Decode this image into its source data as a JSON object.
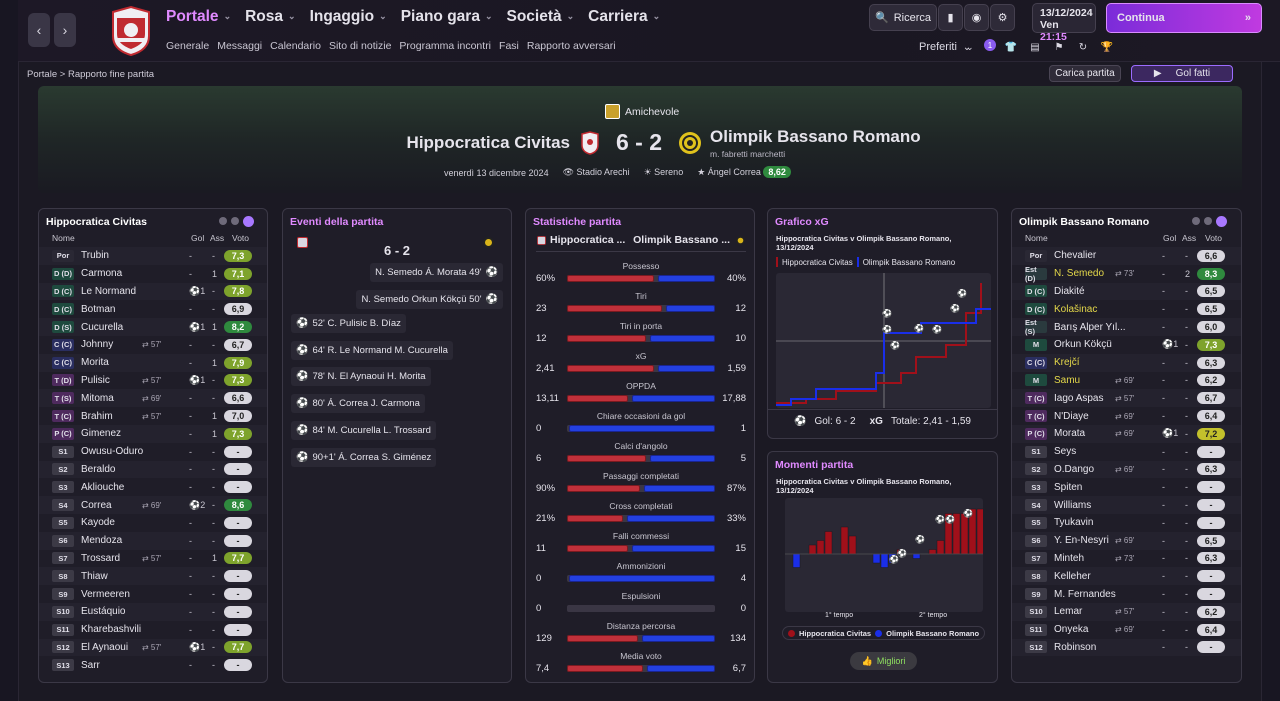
{
  "nav": {
    "back": "‹",
    "forward": "›",
    "menus": [
      {
        "label": "Portale",
        "active": true
      },
      {
        "label": "Rosa"
      },
      {
        "label": "Ingaggio"
      },
      {
        "label": "Piano gara"
      },
      {
        "label": "Società"
      },
      {
        "label": "Carriera"
      }
    ],
    "submenu": [
      "Generale",
      "Messaggi",
      "Calendario",
      "Sito di notizie",
      "Programma incontri",
      "Fasi",
      "Rapporto avversari"
    ],
    "search": "Ricerca",
    "date": "13/12/2024",
    "day": "Ven",
    "time": "21:15",
    "continue": "Continua",
    "favorites": "Preferiti",
    "notif_count": "1"
  },
  "breadcrumb": {
    "root": "Portale",
    "sep": ">",
    "current": "Rapporto fine partita"
  },
  "actions": {
    "load": "Carica partita",
    "goals": "Gol fatti"
  },
  "match": {
    "competition": "Amichevole",
    "home": "Hippocratica Civitas",
    "away": "Olimpik Bassano Romano",
    "score": "6 - 2",
    "coach": "m. fabretti marchetti",
    "date": "venerdì 13 dicembre 2024",
    "stadium": "Stadio Arechi",
    "weather": "Sereno",
    "pom": "Ángel Correa",
    "pom_rating": "8,62"
  },
  "home_panel": {
    "title": "Hippocratica Civitas",
    "col_name": "Nome",
    "col_gol": "Gol",
    "col_ass": "Ass",
    "col_vote": "Voto",
    "players": [
      {
        "pos": "Por",
        "cls": "gk",
        "name": "Trubin",
        "sub": "",
        "gol": "-",
        "ass": "-",
        "vote": "7,3",
        "vc": "g"
      },
      {
        "pos": "D (D)",
        "cls": "def",
        "name": "Carmona",
        "sub": "",
        "gol": "-",
        "ass": "1",
        "vote": "7,1",
        "vc": "g"
      },
      {
        "pos": "D (C)",
        "cls": "def",
        "name": "Le Normand",
        "sub": "",
        "gol": "⚽1",
        "ass": "-",
        "vote": "7,8",
        "vc": "g"
      },
      {
        "pos": "D (C)",
        "cls": "def",
        "name": "Botman",
        "sub": "",
        "gol": "-",
        "ass": "-",
        "vote": "6,9",
        "vc": "w"
      },
      {
        "pos": "D (S)",
        "cls": "def",
        "name": "Cucurella",
        "sub": "",
        "gol": "⚽1",
        "ass": "1",
        "vote": "8,2",
        "vc": "dg"
      },
      {
        "pos": "C (C)",
        "cls": "mid",
        "name": "Johnny",
        "sub": "⇄ 57'",
        "gol": "-",
        "ass": "-",
        "vote": "6,7",
        "vc": "w"
      },
      {
        "pos": "C (C)",
        "cls": "mid",
        "name": "Morita",
        "sub": "",
        "gol": "-",
        "ass": "1",
        "vote": "7,9",
        "vc": "g"
      },
      {
        "pos": "T (D)",
        "cls": "att",
        "name": "Pulisic",
        "sub": "⇄ 57'",
        "gol": "⚽1",
        "ass": "-",
        "vote": "7,3",
        "vc": "g"
      },
      {
        "pos": "T (S)",
        "cls": "att",
        "name": "Mitoma",
        "sub": "⇄ 69'",
        "gol": "-",
        "ass": "-",
        "vote": "6,6",
        "vc": "w"
      },
      {
        "pos": "T (C)",
        "cls": "att",
        "name": "Brahim",
        "sub": "⇄ 57'",
        "gol": "-",
        "ass": "1",
        "vote": "7,0",
        "vc": "w"
      },
      {
        "pos": "P (C)",
        "cls": "att",
        "name": "Gimenez",
        "sub": "",
        "gol": "-",
        "ass": "1",
        "vote": "7,3",
        "vc": "g"
      },
      {
        "pos": "S1",
        "cls": "sub",
        "name": "Owusu-Oduro",
        "sub": "",
        "gol": "-",
        "ass": "-",
        "vote": "-",
        "vc": "n"
      },
      {
        "pos": "S2",
        "cls": "sub",
        "name": "Beraldo",
        "sub": "",
        "gol": "-",
        "ass": "-",
        "vote": "-",
        "vc": "n"
      },
      {
        "pos": "S3",
        "cls": "sub",
        "name": "Akliouche",
        "sub": "",
        "gol": "-",
        "ass": "-",
        "vote": "-",
        "vc": "n"
      },
      {
        "pos": "S4",
        "cls": "sub",
        "name": "Correa",
        "sub": "⇄ 69'",
        "gol": "⚽2",
        "ass": "-",
        "vote": "8,6",
        "vc": "dg"
      },
      {
        "pos": "S5",
        "cls": "sub",
        "name": "Kayode",
        "sub": "",
        "gol": "-",
        "ass": "-",
        "vote": "-",
        "vc": "n"
      },
      {
        "pos": "S6",
        "cls": "sub",
        "name": "Mendoza",
        "sub": "",
        "gol": "-",
        "ass": "-",
        "vote": "-",
        "vc": "n"
      },
      {
        "pos": "S7",
        "cls": "sub",
        "name": "Trossard",
        "sub": "⇄ 57'",
        "gol": "-",
        "ass": "1",
        "vote": "7,7",
        "vc": "g"
      },
      {
        "pos": "S8",
        "cls": "sub",
        "name": "Thiaw",
        "sub": "",
        "gol": "-",
        "ass": "-",
        "vote": "-",
        "vc": "n"
      },
      {
        "pos": "S9",
        "cls": "sub",
        "name": "Vermeeren",
        "sub": "",
        "gol": "-",
        "ass": "-",
        "vote": "-",
        "vc": "n"
      },
      {
        "pos": "S10",
        "cls": "sub",
        "name": "Eustáquio",
        "sub": "",
        "gol": "-",
        "ass": "-",
        "vote": "-",
        "vc": "n"
      },
      {
        "pos": "S11",
        "cls": "sub",
        "name": "Kharebashvili",
        "sub": "",
        "gol": "-",
        "ass": "-",
        "vote": "-",
        "vc": "n"
      },
      {
        "pos": "S12",
        "cls": "sub",
        "name": "El Aynaoui",
        "sub": "⇄ 57'",
        "gol": "⚽1",
        "ass": "-",
        "vote": "7,7",
        "vc": "g"
      },
      {
        "pos": "S13",
        "cls": "sub",
        "name": "Sarr",
        "sub": "",
        "gol": "-",
        "ass": "-",
        "vote": "-",
        "vc": "n"
      }
    ]
  },
  "away_panel": {
    "title": "Olimpik Bassano Romano",
    "col_name": "Nome",
    "col_gol": "Gol",
    "col_ass": "Ass",
    "col_vote": "Voto",
    "players": [
      {
        "pos": "Por",
        "cls": "gk",
        "name": "Chevalier",
        "sub": "",
        "gol": "-",
        "ass": "-",
        "vote": "6,6",
        "vc": "w",
        "hl": false
      },
      {
        "pos": "Est (D)",
        "cls": "est",
        "name": "N. Semedo",
        "sub": "⇄ 73'",
        "gol": "-",
        "ass": "2",
        "vote": "8,3",
        "vc": "dg",
        "hl": true
      },
      {
        "pos": "D (C)",
        "cls": "def",
        "name": "Diakité",
        "sub": "",
        "gol": "-",
        "ass": "-",
        "vote": "6,5",
        "vc": "w",
        "hl": false
      },
      {
        "pos": "D (C)",
        "cls": "def",
        "name": "Kolašinac",
        "sub": "",
        "gol": "-",
        "ass": "-",
        "vote": "6,5",
        "vc": "w",
        "hl": true
      },
      {
        "pos": "Est (S)",
        "cls": "est",
        "name": "Barış Alper Yıl...",
        "sub": "",
        "gol": "-",
        "ass": "-",
        "vote": "6,0",
        "vc": "w",
        "hl": false
      },
      {
        "pos": "M",
        "cls": "def",
        "name": "Orkun Kökçü",
        "sub": "",
        "gol": "⚽1",
        "ass": "-",
        "vote": "7,3",
        "vc": "g",
        "hl": false
      },
      {
        "pos": "C (C)",
        "cls": "mid",
        "name": "Krejčí",
        "sub": "",
        "gol": "-",
        "ass": "-",
        "vote": "6,3",
        "vc": "w",
        "hl": true
      },
      {
        "pos": "M",
        "cls": "def",
        "name": "Samu",
        "sub": "⇄ 69'",
        "gol": "-",
        "ass": "-",
        "vote": "6,2",
        "vc": "w",
        "hl": true
      },
      {
        "pos": "T (C)",
        "cls": "att",
        "name": "Iago Aspas",
        "sub": "⇄ 57'",
        "gol": "-",
        "ass": "-",
        "vote": "6,7",
        "vc": "w",
        "hl": false
      },
      {
        "pos": "T (C)",
        "cls": "att",
        "name": "N'Diaye",
        "sub": "⇄ 69'",
        "gol": "-",
        "ass": "-",
        "vote": "6,4",
        "vc": "w",
        "hl": false
      },
      {
        "pos": "P (C)",
        "cls": "att",
        "name": "Morata",
        "sub": "⇄ 69'",
        "gol": "⚽1",
        "ass": "-",
        "vote": "7,2",
        "vc": "y",
        "hl": false
      },
      {
        "pos": "S1",
        "cls": "sub",
        "name": "Seys",
        "sub": "",
        "gol": "-",
        "ass": "-",
        "vote": "-",
        "vc": "n",
        "hl": false
      },
      {
        "pos": "S2",
        "cls": "sub",
        "name": "O.Dango",
        "sub": "⇄ 69'",
        "gol": "-",
        "ass": "-",
        "vote": "6,3",
        "vc": "w",
        "hl": false
      },
      {
        "pos": "S3",
        "cls": "sub",
        "name": "Spiten",
        "sub": "",
        "gol": "-",
        "ass": "-",
        "vote": "-",
        "vc": "n",
        "hl": false
      },
      {
        "pos": "S4",
        "cls": "sub",
        "name": "Williams",
        "sub": "",
        "gol": "-",
        "ass": "-",
        "vote": "-",
        "vc": "n",
        "hl": false
      },
      {
        "pos": "S5",
        "cls": "sub",
        "name": "Tyukavin",
        "sub": "",
        "gol": "-",
        "ass": "-",
        "vote": "-",
        "vc": "n",
        "hl": false
      },
      {
        "pos": "S6",
        "cls": "sub",
        "name": "Y. En-Nesyri",
        "sub": "⇄ 69'",
        "gol": "-",
        "ass": "-",
        "vote": "6,5",
        "vc": "w",
        "hl": false
      },
      {
        "pos": "S7",
        "cls": "sub",
        "name": "Minteh",
        "sub": "⇄ 73'",
        "gol": "-",
        "ass": "-",
        "vote": "6,3",
        "vc": "w",
        "hl": false
      },
      {
        "pos": "S8",
        "cls": "sub",
        "name": "Kelleher",
        "sub": "",
        "gol": "-",
        "ass": "-",
        "vote": "-",
        "vc": "n",
        "hl": false
      },
      {
        "pos": "S9",
        "cls": "sub",
        "name": "M. Fernandes",
        "sub": "",
        "gol": "-",
        "ass": "-",
        "vote": "-",
        "vc": "n",
        "hl": false
      },
      {
        "pos": "S10",
        "cls": "sub",
        "name": "Lemar",
        "sub": "⇄ 57'",
        "gol": "-",
        "ass": "-",
        "vote": "6,2",
        "vc": "w",
        "hl": false
      },
      {
        "pos": "S11",
        "cls": "sub",
        "name": "Onyeka",
        "sub": "⇄ 69'",
        "gol": "-",
        "ass": "-",
        "vote": "6,4",
        "vc": "w",
        "hl": false
      },
      {
        "pos": "S12",
        "cls": "sub",
        "name": "Robinson",
        "sub": "",
        "gol": "-",
        "ass": "-",
        "vote": "-",
        "vc": "n",
        "hl": false
      }
    ]
  },
  "events": {
    "title": "Eventi della partita",
    "score": "6 - 2",
    "away": [
      "N. Semedo Á. Morata 49'",
      "N. Semedo Orkun Kökçü 50'"
    ],
    "home": [
      "52' C. Pulisic B. Díaz",
      "64' R. Le Normand M. Cucurella",
      "78' N. El Aynaoui H. Morita",
      "80' Á. Correa J. Carmona",
      "84' M. Cucurella L. Trossard",
      "90+1' Á. Correa S. Giménez"
    ]
  },
  "stats": {
    "title": "Statistiche partita",
    "home": "Hippocratica ...",
    "away": "Olimpik Bassano ...",
    "rows": [
      {
        "label": "Possesso",
        "l": "60%",
        "r": "40%",
        "lv": 60,
        "rv": 40
      },
      {
        "label": "Tiri",
        "l": "23",
        "r": "12",
        "lv": 23,
        "rv": 12
      },
      {
        "label": "Tiri in porta",
        "l": "12",
        "r": "10",
        "lv": 12,
        "rv": 10
      },
      {
        "label": "xG",
        "l": "2,41",
        "r": "1,59",
        "lv": 2.41,
        "rv": 1.59
      },
      {
        "label": "OPPDA",
        "l": "13,11",
        "r": "17,88",
        "lv": 13.11,
        "rv": 17.88
      },
      {
        "label": "Chiare occasioni da gol",
        "l": "0",
        "r": "1",
        "lv": 0,
        "rv": 1
      },
      {
        "label": "Calci d'angolo",
        "l": "6",
        "r": "5",
        "lv": 6,
        "rv": 5
      },
      {
        "label": "Passaggi completati",
        "l": "90%",
        "r": "87%",
        "lv": 90,
        "rv": 87
      },
      {
        "label": "Cross completati",
        "l": "21%",
        "r": "33%",
        "lv": 21,
        "rv": 33
      },
      {
        "label": "Falli commessi",
        "l": "11",
        "r": "15",
        "lv": 11,
        "rv": 15
      },
      {
        "label": "Ammonizioni",
        "l": "0",
        "r": "4",
        "lv": 0,
        "rv": 4
      },
      {
        "label": "Espulsioni",
        "l": "0",
        "r": "0",
        "lv": 0,
        "rv": 0
      },
      {
        "label": "Distanza percorsa",
        "l": "129",
        "r": "134",
        "lv": 129,
        "rv": 134
      },
      {
        "label": "Media voto",
        "l": "7,4",
        "r": "6,7",
        "lv": 7.4,
        "rv": 6.7
      }
    ]
  },
  "xg": {
    "title": "Grafico xG",
    "subtitle": "Hippocratica Civitas v Olimpik Bassano Romano, 13/12/2024",
    "leg_home": "Hippocratica Civitas",
    "leg_away": "Olimpik Bassano Romano",
    "footer_gol": "Gol: 6 - 2",
    "footer_xg_label": "xG",
    "footer_xg": "Totale: 2,41 - 1,59"
  },
  "momenti": {
    "title": "Momenti partita",
    "subtitle": "Hippocratica Civitas v Olimpik Bassano Romano, 13/12/2024",
    "half1": "1° tempo",
    "half2": "2° tempo",
    "leg_home": "Hippocratica Civitas",
    "leg_away": "Olimpik Bassano Romano",
    "best": "Migliori"
  },
  "colors": {
    "accent": "#e08aff",
    "home": "#a0101a",
    "away": "#1a2ee8",
    "good": "#2f8a3e"
  },
  "chart_data": [
    {
      "type": "line",
      "title": "Grafico xG",
      "series": [
        {
          "name": "Hippocratica Civitas",
          "color": "#a0101a"
        },
        {
          "name": "Olimpik Bassano Romano",
          "color": "#1a2ee8"
        }
      ],
      "totals": {
        "Hippocratica Civitas": 2.41,
        "Olimpik Bassano Romano": 1.59
      }
    },
    {
      "type": "bar",
      "title": "Momenti partita",
      "values": [
        -3,
        0,
        2,
        3,
        5,
        0,
        6,
        4,
        0,
        0,
        -2,
        -3,
        -2,
        1,
        0,
        -1,
        0,
        1,
        3,
        9,
        9,
        9,
        10,
        10
      ],
      "series": [
        {
          "name": "Hippocratica Civitas"
        },
        {
          "name": "Olimpik Bassano Romano"
        }
      ]
    }
  ]
}
